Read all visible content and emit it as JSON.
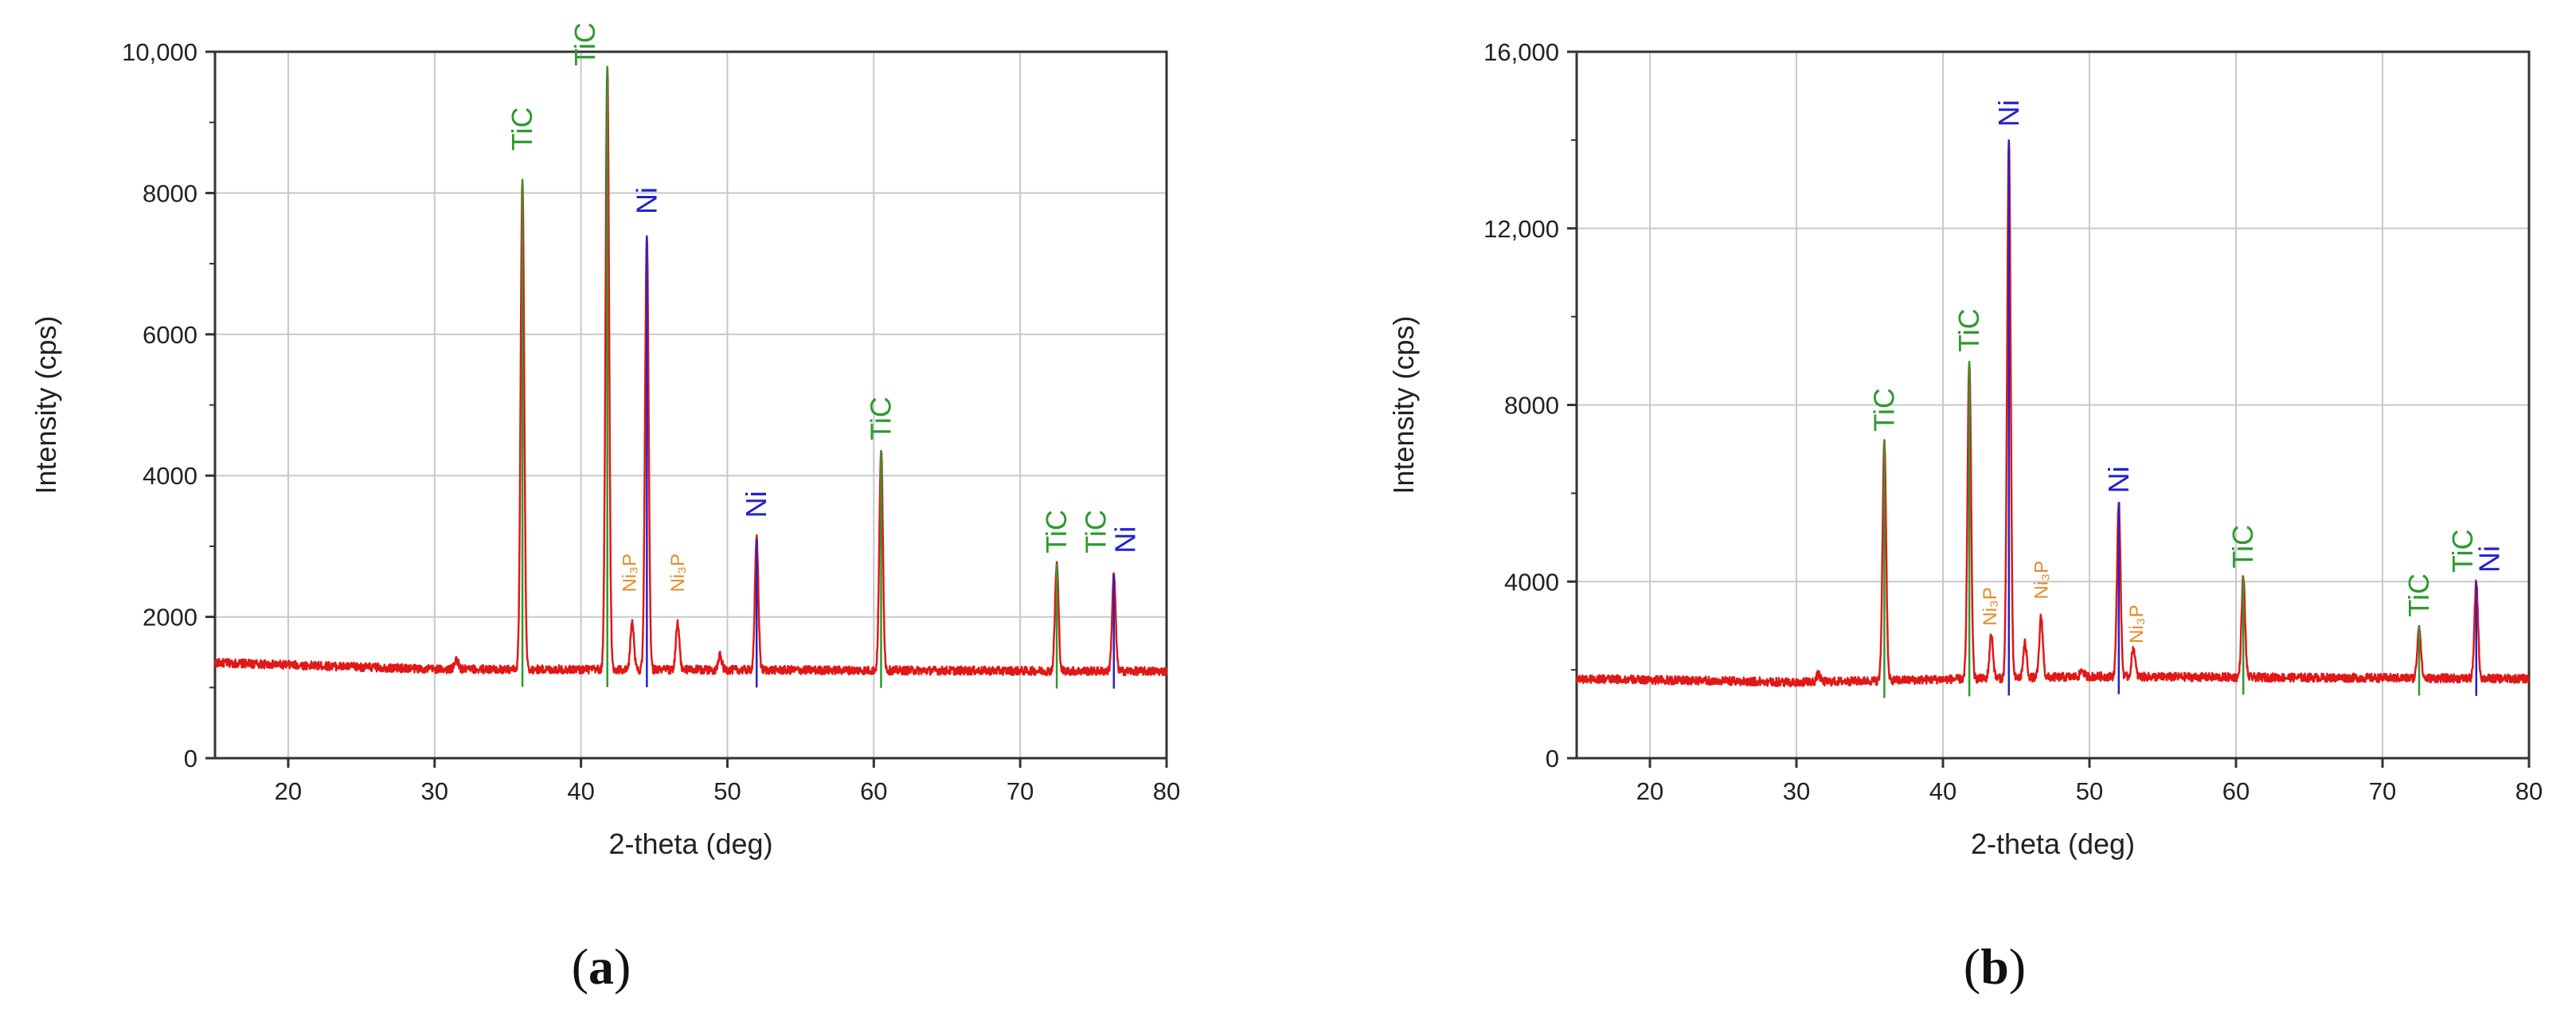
{
  "panels": [
    {
      "caption_letter": "a",
      "chart_data": {
        "type": "line",
        "xlabel": "2-theta (deg)",
        "ylabel": "Intensity (cps)",
        "xlim": [
          15,
          80
        ],
        "ylim": [
          0,
          10000
        ],
        "xticks": [
          20,
          30,
          40,
          50,
          60,
          70,
          80
        ],
        "xtick_labels": [
          "20",
          "30",
          "40",
          "50",
          "60",
          "70",
          "80"
        ],
        "yticks": [
          0,
          2000,
          4000,
          6000,
          8000,
          10000
        ],
        "ytick_labels": [
          "0",
          "2000",
          "4000",
          "6000",
          "8000",
          "10,000"
        ],
        "grid": true,
        "baseline": [
          [
            15,
            1350
          ],
          [
            30,
            1260
          ],
          [
            50,
            1250
          ],
          [
            80,
            1230
          ]
        ],
        "peaks": [
          {
            "x": 31.5,
            "y": 1400
          },
          {
            "x": 36.0,
            "y": 8200
          },
          {
            "x": 41.8,
            "y": 9800
          },
          {
            "x": 43.5,
            "y": 1950
          },
          {
            "x": 44.5,
            "y": 7400
          },
          {
            "x": 46.6,
            "y": 1900
          },
          {
            "x": 49.5,
            "y": 1450
          },
          {
            "x": 52.0,
            "y": 3100
          },
          {
            "x": 60.5,
            "y": 4350
          },
          {
            "x": 72.5,
            "y": 2750
          },
          {
            "x": 76.4,
            "y": 2600
          }
        ],
        "markers": [
          {
            "x": 36.0,
            "y": 8200,
            "color": "#2e9a2e"
          },
          {
            "x": 41.8,
            "y": 9800,
            "color": "#2e9a2e"
          },
          {
            "x": 44.5,
            "y": 7400,
            "color": "#2323c8"
          },
          {
            "x": 52.0,
            "y": 3100,
            "color": "#2323c8"
          },
          {
            "x": 60.5,
            "y": 4350,
            "color": "#2e9a2e"
          },
          {
            "x": 72.5,
            "y": 2750,
            "color": "#2e9a2e"
          },
          {
            "x": 76.4,
            "y": 2600,
            "color": "#2323c8"
          }
        ],
        "annotations": [
          {
            "text": "TiC",
            "x": 36.0,
            "y": 8600,
            "color": "#2e9a2e",
            "size": "normal"
          },
          {
            "text": "TiC",
            "x": 40.3,
            "y": 9800,
            "color": "#2e9a2e",
            "size": "normal"
          },
          {
            "text": "Ni",
            "x": 44.5,
            "y": 7700,
            "color": "#2323c8",
            "size": "normal"
          },
          {
            "text": "Ni₃P",
            "x": 43.3,
            "y": 2350,
            "color": "#e88a2a",
            "size": "small"
          },
          {
            "text": "Ni₃P",
            "x": 46.6,
            "y": 2350,
            "color": "#e88a2a",
            "size": "small"
          },
          {
            "text": "Ni",
            "x": 52.0,
            "y": 3400,
            "color": "#2323c8",
            "size": "normal"
          },
          {
            "text": "TiC",
            "x": 60.5,
            "y": 4500,
            "color": "#2e9a2e",
            "size": "normal"
          },
          {
            "text": "TiC",
            "x": 72.5,
            "y": 2900,
            "color": "#2e9a2e",
            "size": "normal"
          },
          {
            "text": "TiC",
            "x": 75.2,
            "y": 2900,
            "color": "#2e9a2e",
            "size": "normal"
          },
          {
            "text": "Ni",
            "x": 77.2,
            "y": 2900,
            "color": "#2323c8",
            "size": "normal"
          }
        ]
      }
    },
    {
      "caption_letter": "b",
      "chart_data": {
        "type": "line",
        "xlabel": "2-theta (deg)",
        "ylabel": "Intensity (cps)",
        "xlim": [
          15,
          80
        ],
        "ylim": [
          0,
          16000
        ],
        "xticks": [
          20,
          30,
          40,
          50,
          60,
          70,
          80
        ],
        "xtick_labels": [
          "20",
          "30",
          "40",
          "50",
          "60",
          "70",
          "80"
        ],
        "yticks": [
          0,
          4000,
          8000,
          12000,
          16000
        ],
        "ytick_labels": [
          "0",
          "4000",
          "8000",
          "12,000",
          "16,000"
        ],
        "grid": true,
        "baseline": [
          [
            15,
            1800
          ],
          [
            30,
            1720
          ],
          [
            50,
            1850
          ],
          [
            80,
            1800
          ]
        ],
        "peaks": [
          {
            "x": 31.5,
            "y": 1900
          },
          {
            "x": 36.0,
            "y": 7200
          },
          {
            "x": 41.8,
            "y": 9000
          },
          {
            "x": 43.3,
            "y": 2800
          },
          {
            "x": 44.5,
            "y": 14000
          },
          {
            "x": 45.6,
            "y": 2600
          },
          {
            "x": 46.7,
            "y": 3200
          },
          {
            "x": 49.5,
            "y": 2000
          },
          {
            "x": 52.0,
            "y": 5800
          },
          {
            "x": 53.0,
            "y": 2500
          },
          {
            "x": 60.5,
            "y": 4100
          },
          {
            "x": 72.5,
            "y": 3000
          },
          {
            "x": 76.4,
            "y": 4000
          }
        ],
        "markers": [
          {
            "x": 36.0,
            "y": 7200,
            "color": "#2e9a2e"
          },
          {
            "x": 41.8,
            "y": 9000,
            "color": "#2e9a2e"
          },
          {
            "x": 44.5,
            "y": 14000,
            "color": "#2323c8"
          },
          {
            "x": 52.0,
            "y": 5800,
            "color": "#2323c8"
          },
          {
            "x": 60.5,
            "y": 4100,
            "color": "#2e9a2e"
          },
          {
            "x": 72.5,
            "y": 3000,
            "color": "#2e9a2e"
          },
          {
            "x": 76.4,
            "y": 4000,
            "color": "#2323c8"
          }
        ],
        "annotations": [
          {
            "text": "TiC",
            "x": 36.0,
            "y": 7400,
            "color": "#2e9a2e",
            "size": "normal"
          },
          {
            "text": "TiC",
            "x": 41.8,
            "y": 9200,
            "color": "#2e9a2e",
            "size": "normal"
          },
          {
            "text": "Ni",
            "x": 44.5,
            "y": 14300,
            "color": "#2323c8",
            "size": "normal"
          },
          {
            "text": "Ni₃P",
            "x": 43.2,
            "y": 3000,
            "color": "#e88a2a",
            "size": "small"
          },
          {
            "text": "Ni₃P",
            "x": 46.7,
            "y": 3600,
            "color": "#e88a2a",
            "size": "small"
          },
          {
            "text": "Ni₃P",
            "x": 53.2,
            "y": 2600,
            "color": "#e88a2a",
            "size": "small"
          },
          {
            "text": "Ni",
            "x": 52.0,
            "y": 6000,
            "color": "#2323c8",
            "size": "normal"
          },
          {
            "text": "TiC",
            "x": 60.5,
            "y": 4300,
            "color": "#2e9a2e",
            "size": "normal"
          },
          {
            "text": "TiC",
            "x": 72.5,
            "y": 3200,
            "color": "#2e9a2e",
            "size": "normal"
          },
          {
            "text": "TiC",
            "x": 75.5,
            "y": 4200,
            "color": "#2e9a2e",
            "size": "normal"
          },
          {
            "text": "Ni",
            "x": 77.3,
            "y": 4200,
            "color": "#2323c8",
            "size": "normal"
          }
        ]
      }
    }
  ],
  "colors": {
    "pattern": "#e01818",
    "grid": "#c8c8c8",
    "axis": "#333333"
  }
}
